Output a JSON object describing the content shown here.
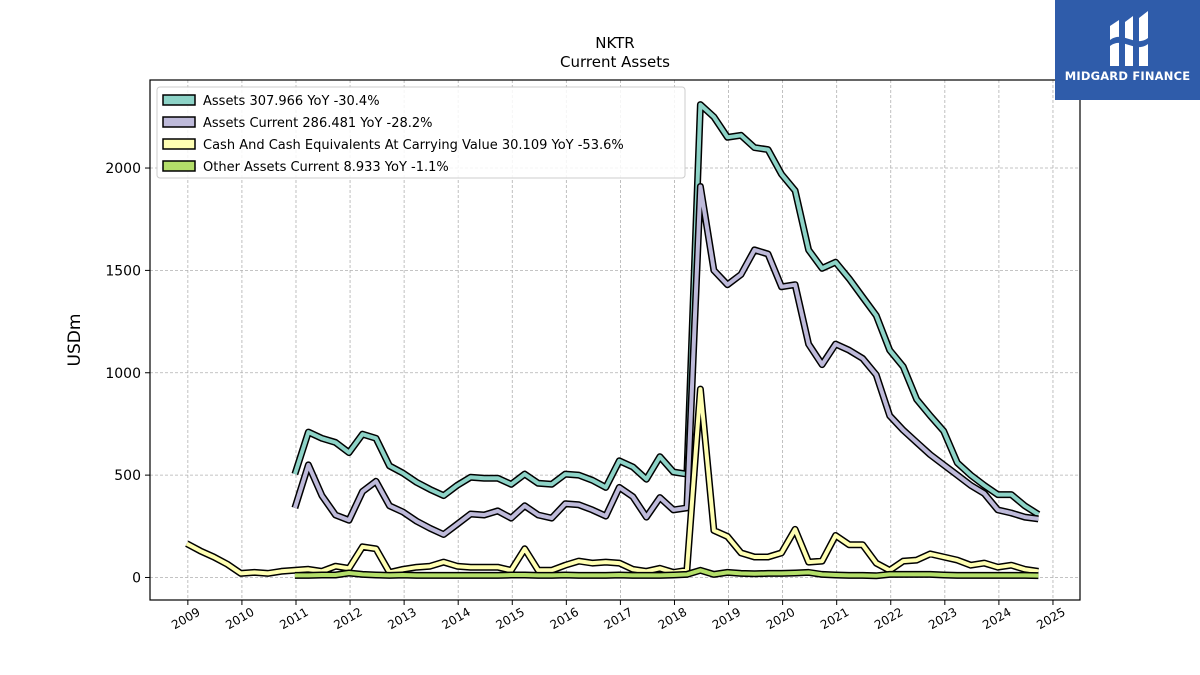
{
  "chart_data": {
    "type": "line",
    "title": "NKTR",
    "subtitle": "Current  Assets",
    "ylabel": "USDm",
    "xlabel": "",
    "xlim": [
      2008.3,
      2025.5
    ],
    "ylim": [
      -110,
      2430
    ],
    "yticks": [
      0,
      500,
      1000,
      1500,
      2000
    ],
    "xticks": [
      "2009",
      "2010",
      "2011",
      "2012",
      "2013",
      "2014",
      "2015",
      "2016",
      "2017",
      "2018",
      "2019",
      "2020",
      "2021",
      "2022",
      "2023",
      "2024",
      "2025"
    ],
    "grid": true,
    "legend_position": "top-left",
    "series": [
      {
        "name": "Assets  307.966 YoY -30.4%",
        "color": "#8dd3c7",
        "x": [
          2010.98,
          2011.23,
          2011.48,
          2011.73,
          2011.98,
          2012.23,
          2012.48,
          2012.73,
          2012.98,
          2013.23,
          2013.48,
          2013.73,
          2013.98,
          2014.23,
          2014.48,
          2014.73,
          2014.98,
          2015.23,
          2015.48,
          2015.73,
          2015.98,
          2016.23,
          2016.48,
          2016.73,
          2016.98,
          2017.23,
          2017.48,
          2017.73,
          2017.98,
          2018.23,
          2018.48,
          2018.73,
          2018.98,
          2019.23,
          2019.48,
          2019.73,
          2019.98,
          2020.23,
          2020.48,
          2020.73,
          2020.98,
          2021.23,
          2021.48,
          2021.73,
          2021.98,
          2022.23,
          2022.48,
          2022.73,
          2022.98,
          2023.23,
          2023.48,
          2023.73,
          2023.98,
          2024.23,
          2024.48,
          2024.73
        ],
        "y": [
          505,
          710,
          680,
          660,
          610,
          700,
          680,
          545,
          510,
          465,
          430,
          400,
          450,
          490,
          485,
          485,
          455,
          505,
          460,
          455,
          505,
          500,
          475,
          440,
          570,
          540,
          480,
          590,
          515,
          505,
          2310,
          2250,
          2150,
          2160,
          2100,
          2090,
          1970,
          1890,
          1600,
          1510,
          1540,
          1460,
          1370,
          1280,
          1110,
          1030,
          870,
          790,
          715,
          560,
          500,
          450,
          405,
          405,
          350,
          308
        ]
      },
      {
        "name": "Assets Current  286.481 YoY -28.2%",
        "color": "#bebada",
        "x": [
          2010.98,
          2011.23,
          2011.48,
          2011.73,
          2011.98,
          2012.23,
          2012.48,
          2012.73,
          2012.98,
          2013.23,
          2013.48,
          2013.73,
          2013.98,
          2014.23,
          2014.48,
          2014.73,
          2014.98,
          2015.23,
          2015.48,
          2015.73,
          2015.98,
          2016.23,
          2016.48,
          2016.73,
          2016.98,
          2017.23,
          2017.48,
          2017.73,
          2017.98,
          2018.23,
          2018.48,
          2018.73,
          2018.98,
          2019.23,
          2019.48,
          2019.73,
          2019.98,
          2020.23,
          2020.48,
          2020.73,
          2020.98,
          2021.23,
          2021.48,
          2021.73,
          2021.98,
          2022.23,
          2022.48,
          2022.73,
          2022.98,
          2023.23,
          2023.48,
          2023.73,
          2023.98,
          2024.23,
          2024.48,
          2024.73
        ],
        "y": [
          340,
          550,
          400,
          305,
          280,
          420,
          470,
          350,
          320,
          275,
          240,
          210,
          260,
          310,
          305,
          325,
          290,
          350,
          305,
          290,
          360,
          355,
          330,
          300,
          440,
          395,
          295,
          390,
          330,
          340,
          1910,
          1500,
          1430,
          1480,
          1600,
          1580,
          1420,
          1430,
          1140,
          1040,
          1140,
          1110,
          1070,
          990,
          790,
          720,
          660,
          600,
          550,
          500,
          450,
          410,
          330,
          315,
          295,
          286
        ]
      },
      {
        "name": "Cash And Cash Equivalents At Carrying Value  30.109 YoY -53.6%",
        "color": "#ffffb3",
        "x": [
          2008.98,
          2009.23,
          2009.48,
          2009.73,
          2009.98,
          2010.23,
          2010.48,
          2010.73,
          2010.98,
          2011.23,
          2011.48,
          2011.73,
          2011.98,
          2012.23,
          2012.48,
          2012.73,
          2012.98,
          2013.23,
          2013.48,
          2013.73,
          2013.98,
          2014.23,
          2014.48,
          2014.73,
          2014.98,
          2015.23,
          2015.48,
          2015.73,
          2015.98,
          2016.23,
          2016.48,
          2016.73,
          2016.98,
          2017.23,
          2017.48,
          2017.73,
          2017.98,
          2018.23,
          2018.48,
          2018.73,
          2018.98,
          2019.23,
          2019.48,
          2019.73,
          2019.98,
          2020.23,
          2020.48,
          2020.73,
          2020.98,
          2021.23,
          2021.48,
          2021.73,
          2021.98,
          2022.23,
          2022.48,
          2022.73,
          2022.98,
          2023.23,
          2023.48,
          2023.73,
          2023.98,
          2024.23,
          2024.48,
          2024.73
        ],
        "y": [
          165,
          130,
          100,
          65,
          20,
          25,
          20,
          30,
          35,
          40,
          30,
          55,
          45,
          150,
          140,
          25,
          40,
          50,
          55,
          75,
          55,
          50,
          50,
          50,
          35,
          140,
          35,
          35,
          60,
          80,
          70,
          75,
          70,
          40,
          30,
          45,
          25,
          35,
          920,
          230,
          200,
          120,
          100,
          100,
          120,
          235,
          75,
          80,
          205,
          160,
          160,
          70,
          35,
          80,
          85,
          115,
          100,
          85,
          60,
          70,
          50,
          60,
          40,
          30
        ]
      },
      {
        "name": "Other Assets Current  8.933 YoY -1.1%",
        "color": "#b3de69",
        "x": [
          2010.98,
          2011.23,
          2011.48,
          2011.73,
          2011.98,
          2012.23,
          2012.48,
          2012.73,
          2012.98,
          2013.23,
          2013.48,
          2013.73,
          2013.98,
          2014.23,
          2014.48,
          2014.73,
          2014.98,
          2015.23,
          2015.48,
          2015.73,
          2015.98,
          2016.23,
          2016.48,
          2016.73,
          2016.98,
          2017.23,
          2017.48,
          2017.73,
          2017.98,
          2018.23,
          2018.48,
          2018.73,
          2018.98,
          2019.23,
          2019.48,
          2019.73,
          2019.98,
          2020.23,
          2020.48,
          2020.73,
          2020.98,
          2021.23,
          2021.48,
          2021.73,
          2021.98,
          2022.23,
          2022.48,
          2022.73,
          2022.98,
          2023.23,
          2023.48,
          2023.73,
          2023.98,
          2024.23,
          2024.48,
          2024.73
        ],
        "y": [
          10,
          10,
          12,
          12,
          22,
          15,
          12,
          10,
          12,
          10,
          10,
          10,
          10,
          10,
          10,
          10,
          12,
          12,
          10,
          10,
          12,
          10,
          10,
          10,
          12,
          10,
          10,
          10,
          12,
          15,
          35,
          15,
          25,
          20,
          18,
          20,
          20,
          22,
          25,
          15,
          12,
          10,
          10,
          8,
          15,
          15,
          15,
          15,
          12,
          10,
          10,
          10,
          10,
          10,
          10,
          9
        ]
      }
    ]
  },
  "logo": {
    "text": "MIDGARD FINANCE",
    "background": "#2f5caa"
  }
}
